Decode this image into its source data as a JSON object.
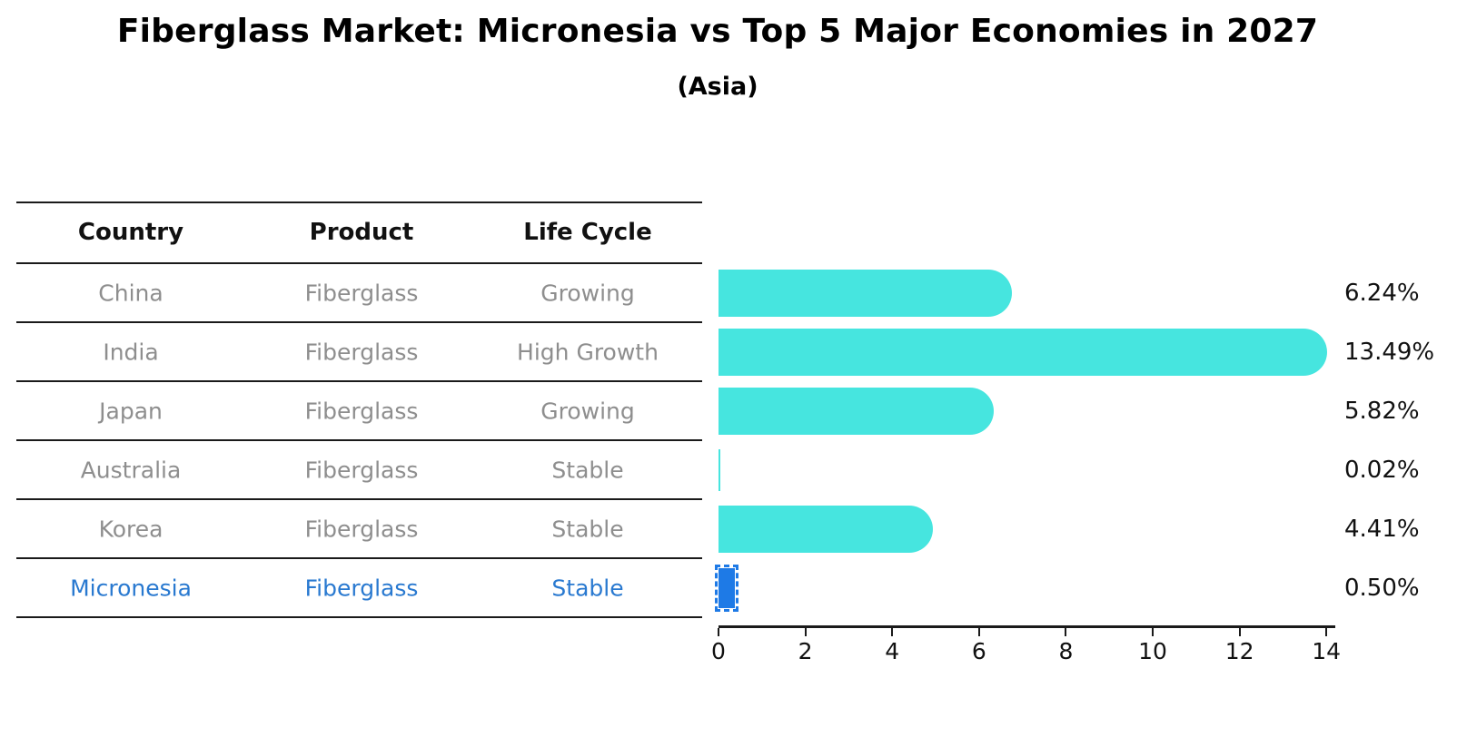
{
  "chart_data": {
    "type": "bar",
    "orientation": "horizontal",
    "title": "Fiberglass Market: Micronesia vs Top 5 Major Economies in 2027",
    "subtitle": "(Asia)",
    "categories": [
      "China",
      "India",
      "Japan",
      "Australia",
      "Korea",
      "Micronesia"
    ],
    "values": [
      6.24,
      13.49,
      5.82,
      0.02,
      4.41,
      0.5
    ],
    "value_labels": [
      "6.24%",
      "13.49%",
      "5.82%",
      "0.02%",
      "4.41%",
      "0.50%"
    ],
    "xlabel": "",
    "ylabel": "",
    "xlim": [
      0,
      14.2
    ],
    "xticks": [
      0,
      2,
      4,
      6,
      8,
      10,
      12,
      14
    ],
    "grid": false,
    "legend_position": "none",
    "highlight_category": "Micronesia",
    "bar_color": "#46E5DF",
    "highlight_bar_color": "#1E7AE6"
  },
  "table": {
    "columns": [
      "Country",
      "Product",
      "Life Cycle"
    ],
    "rows": [
      {
        "country": "China",
        "product": "Fiberglass",
        "life_cycle": "Growing",
        "value_label": "6.24%",
        "highlight": false
      },
      {
        "country": "India",
        "product": "Fiberglass",
        "life_cycle": "High Growth",
        "value_label": "13.49%",
        "highlight": false
      },
      {
        "country": "Japan",
        "product": "Fiberglass",
        "life_cycle": "Growing",
        "value_label": "5.82%",
        "highlight": false
      },
      {
        "country": "Australia",
        "product": "Fiberglass",
        "life_cycle": "Stable",
        "value_label": "0.02%",
        "highlight": false
      },
      {
        "country": "Korea",
        "product": "Fiberglass",
        "life_cycle": "Stable",
        "value_label": "4.41%",
        "highlight": false
      },
      {
        "country": "Micronesia",
        "product": "Fiberglass",
        "life_cycle": "Stable",
        "value_label": "0.50%",
        "highlight": true
      }
    ]
  },
  "colors": {
    "background": "#FFFFFF",
    "text_primary": "#111111",
    "text_muted": "#8E8E8E",
    "highlight_text": "#2979D0",
    "axis": "#1A1A1A"
  }
}
